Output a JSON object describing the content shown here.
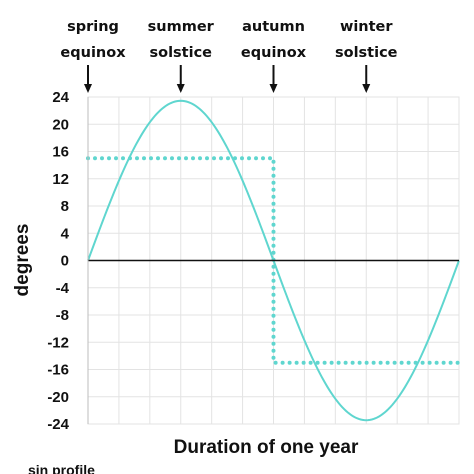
{
  "chart_data": {
    "type": "line",
    "xlabel": "Duration of one year",
    "ylabel": "degrees",
    "ylim": [
      -24,
      24
    ],
    "y_ticks": [
      24,
      20,
      16,
      12,
      8,
      4,
      0,
      -4,
      -8,
      -12,
      -16,
      -20,
      -24
    ],
    "x_range": [
      0,
      1
    ],
    "grid": true,
    "series": [
      {
        "style": "solid",
        "color": "#5fd6cf",
        "function": "sine",
        "amplitude": 23.44,
        "x": [
          0,
          0.125,
          0.25,
          0.375,
          0.5,
          0.625,
          0.75,
          0.875,
          1.0
        ],
        "values": [
          0,
          16.6,
          23.4,
          16.6,
          0,
          -16.6,
          -23.4,
          -16.6,
          0
        ]
      },
      {
        "style": "dotted",
        "color": "#5fd6cf",
        "function": "step",
        "x": [
          0,
          0.5,
          0.5,
          1.0
        ],
        "values": [
          15,
          15,
          -15,
          -15
        ]
      }
    ],
    "annotations": [
      {
        "line1": "spring",
        "line2": "equinox",
        "x": 0
      },
      {
        "line1": "summer",
        "line2": "solstice",
        "x": 0.25
      },
      {
        "line1": "autumn",
        "line2": "equinox",
        "x": 0.5
      },
      {
        "line1": "winter",
        "line2": "solstice",
        "x": 0.75
      }
    ],
    "caption": "sin profile"
  }
}
